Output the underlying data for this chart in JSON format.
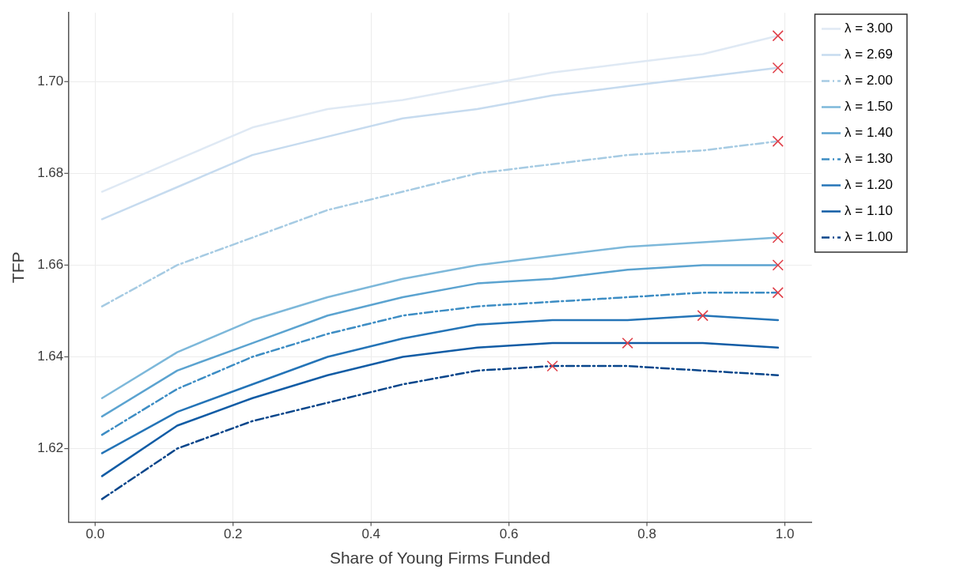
{
  "chart_data": {
    "type": "line",
    "xlabel": "Share of Young Firms Funded",
    "ylabel": "TFP",
    "x": [
      0.01,
      0.119,
      0.228,
      0.337,
      0.446,
      0.554,
      0.663,
      0.772,
      0.881,
      0.99
    ],
    "xlim": [
      -0.039,
      1.039
    ],
    "xticks": [
      {
        "value": 0,
        "label": "0.0"
      },
      0.2,
      0.4,
      0.6,
      0.8,
      {
        "value": 1,
        "label": "1.0"
      }
    ],
    "ylim": [
      1.604,
      1.715
    ],
    "yticks": [
      1.62,
      1.64,
      1.66,
      1.68,
      {
        "value": 1.7,
        "label": "1.70"
      }
    ],
    "grid": true,
    "legend": "top right",
    "marker": "none",
    "series": [
      {
        "name": "λ = 3.00",
        "color": "#dfe9f4",
        "line_style": "solid",
        "values": [
          1.676,
          1.683,
          1.69,
          1.694,
          1.696,
          1.699,
          1.702,
          1.704,
          1.706,
          1.71
        ]
      },
      {
        "name": "λ = 2.69",
        "color": "#c6dbef",
        "line_style": "solid",
        "values": [
          1.67,
          1.677,
          1.684,
          1.688,
          1.692,
          1.694,
          1.697,
          1.699,
          1.701,
          1.703
        ]
      },
      {
        "name": "λ = 2.00",
        "color": "#a6cbe3",
        "line_style": "dashdot",
        "values": [
          1.651,
          1.66,
          1.666,
          1.672,
          1.676,
          1.68,
          1.682,
          1.684,
          1.685,
          1.687
        ]
      },
      {
        "name": "λ = 1.50",
        "color": "#7db8da",
        "line_style": "solid",
        "values": [
          1.631,
          1.641,
          1.648,
          1.653,
          1.657,
          1.66,
          1.662,
          1.664,
          1.665,
          1.666
        ]
      },
      {
        "name": "λ = 1.40",
        "color": "#5ba3d0",
        "line_style": "solid",
        "values": [
          1.627,
          1.637,
          1.643,
          1.649,
          1.653,
          1.656,
          1.657,
          1.659,
          1.66,
          1.66
        ]
      },
      {
        "name": "λ = 1.30",
        "color": "#3d8dc4",
        "line_style": "dashdot",
        "values": [
          1.623,
          1.633,
          1.64,
          1.645,
          1.649,
          1.651,
          1.652,
          1.653,
          1.654,
          1.654
        ]
      },
      {
        "name": "λ = 1.20",
        "color": "#2474b7",
        "line_style": "solid",
        "values": [
          1.619,
          1.628,
          1.634,
          1.64,
          1.644,
          1.647,
          1.648,
          1.648,
          1.649,
          1.648
        ]
      },
      {
        "name": "λ = 1.10",
        "color": "#115ca5",
        "line_style": "solid",
        "values": [
          1.614,
          1.625,
          1.631,
          1.636,
          1.64,
          1.642,
          1.643,
          1.643,
          1.643,
          1.642
        ]
      },
      {
        "name": "λ = 1.00",
        "color": "#08468b",
        "line_style": "dashdot",
        "values": [
          1.609,
          1.62,
          1.626,
          1.63,
          1.634,
          1.637,
          1.638,
          1.638,
          1.637,
          1.636
        ]
      },
      {
        "type": "scatter",
        "color": "#e0404a",
        "marker": "cross",
        "x": [
          0.99,
          0.99,
          0.99,
          0.99,
          0.99,
          0.99,
          0.881,
          0.772,
          0.663
        ],
        "values": [
          1.71,
          1.703,
          1.687,
          1.666,
          1.66,
          1.654,
          1.649,
          1.643,
          1.638
        ]
      }
    ]
  }
}
